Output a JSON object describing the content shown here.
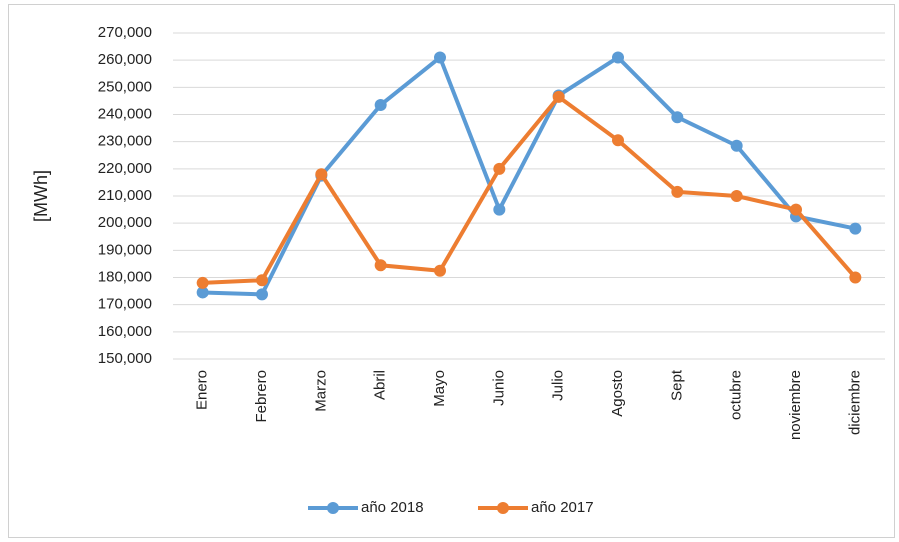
{
  "chart_data": {
    "type": "line",
    "y_label": "[MWh]",
    "categories": [
      "Enero",
      "Febrero",
      "Marzo",
      "Abril",
      "Mayo",
      "Junio",
      "Julio",
      "Agosto",
      "Sept",
      "octubre",
      "noviembre",
      "diciembre"
    ],
    "series": [
      {
        "name": "año 2018",
        "color": "#5b9bd5",
        "values": [
          174500,
          173800,
          217500,
          243500,
          261000,
          205000,
          247000,
          261000,
          239000,
          228500,
          202500,
          198000
        ]
      },
      {
        "name": "año 2017",
        "color": "#ed7d31",
        "values": [
          178000,
          179000,
          218000,
          184500,
          182500,
          220000,
          246500,
          230500,
          211500,
          210000,
          205000,
          180000
        ]
      }
    ],
    "ylim": [
      150000,
      270000
    ],
    "yticks": [
      {
        "value": 150000,
        "label": "150,000"
      },
      {
        "value": 160000,
        "label": "160,000"
      },
      {
        "value": 170000,
        "label": "170,000"
      },
      {
        "value": 180000,
        "label": "180,000"
      },
      {
        "value": 190000,
        "label": "190,000"
      },
      {
        "value": 200000,
        "label": "200,000"
      },
      {
        "value": 210000,
        "label": "210,000"
      },
      {
        "value": 220000,
        "label": "220,000"
      },
      {
        "value": 230000,
        "label": "230,000"
      },
      {
        "value": 240000,
        "label": "240,000"
      },
      {
        "value": 250000,
        "label": "250,000"
      },
      {
        "value": 260000,
        "label": "260,000"
      },
      {
        "value": 270000,
        "label": "270,000"
      }
    ],
    "grid": true,
    "legend": "bottom"
  }
}
